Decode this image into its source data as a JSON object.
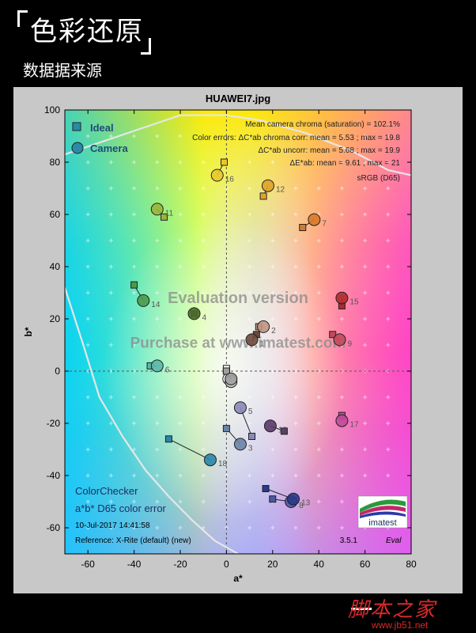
{
  "page": {
    "heading": "色彩还原",
    "subheading": "数据据来源",
    "watermark": "脚本之家",
    "watermark_url": "www.jb51.net"
  },
  "chart_data": {
    "type": "scatter",
    "title": "HUAWEI7.jpg",
    "xlabel": "a*",
    "ylabel": "b*",
    "xlim": [
      -70,
      80
    ],
    "ylim": [
      -70,
      100
    ],
    "xticks": [
      -60,
      -40,
      -20,
      0,
      20,
      40,
      60,
      80
    ],
    "yticks": [
      -60,
      -40,
      -20,
      0,
      20,
      40,
      60,
      80,
      100
    ],
    "grid": true,
    "legend": [
      {
        "label": "Ideal",
        "marker": "square",
        "color": "#2a8aa8"
      },
      {
        "label": "Camera",
        "marker": "circle",
        "color": "#2a8aa8"
      }
    ],
    "stats": [
      "Mean camera chroma (saturation) = 102.1%",
      "Color errors: ΔC*ab chroma corr:  mean = 5.53 ;  max = 19.8",
      "ΔC*ab uncorr:  mean = 5.68 ;  max = 19.9",
      "ΔE*ab:  mean = 9.61 ;  max = 21",
      "sRGB (D65)"
    ],
    "watermarks": [
      "Evaluation version",
      "Purchase at www.imatest.com"
    ],
    "footer": [
      "ColorChecker",
      "a*b* D65 color error",
      "10-Jul-2017 14:41:58",
      "Reference: X-Rite (default) (new)"
    ],
    "logo_text": "imatest",
    "version": "3.5.1",
    "version_tag": "Eval",
    "patches": [
      {
        "label": "1",
        "color": "#6e4a3c",
        "ideal": [
          13,
          14
        ],
        "camera": [
          11,
          12
        ]
      },
      {
        "label": "2",
        "color": "#c09484",
        "ideal": [
          14,
          17
        ],
        "camera": [
          16,
          17
        ]
      },
      {
        "label": "3",
        "color": "#6a84a8",
        "ideal": [
          0,
          -22
        ],
        "camera": [
          6,
          -28
        ]
      },
      {
        "label": "4",
        "color": "#4e6a2e",
        "ideal": [
          -14,
          22
        ],
        "camera": [
          -14,
          22
        ]
      },
      {
        "label": "5",
        "color": "#8a88b8",
        "ideal": [
          11,
          -25
        ],
        "camera": [
          6,
          -14
        ]
      },
      {
        "label": "6",
        "color": "#5ab8a8",
        "ideal": [
          -33,
          2
        ],
        "camera": [
          -30,
          2
        ]
      },
      {
        "label": "7",
        "color": "#d87a2a",
        "ideal": [
          33,
          55
        ],
        "camera": [
          38,
          58
        ]
      },
      {
        "label": "8",
        "color": "#4a56a8",
        "ideal": [
          20,
          -49
        ],
        "camera": [
          28,
          -50
        ]
      },
      {
        "label": "9",
        "color": "#c24a5a",
        "ideal": [
          46,
          14
        ],
        "camera": [
          49,
          12
        ]
      },
      {
        "label": "10",
        "color": "#5a3a6a",
        "ideal": [
          25,
          -23
        ],
        "camera": [
          19,
          -21
        ]
      },
      {
        "label": "11",
        "color": "#9ab43a",
        "ideal": [
          -27,
          59
        ],
        "camera": [
          -30,
          62
        ]
      },
      {
        "label": "12",
        "color": "#e0a22a",
        "ideal": [
          16,
          67
        ],
        "camera": [
          18,
          71
        ]
      },
      {
        "label": "13",
        "color": "#2a3a8a",
        "ideal": [
          17,
          -45
        ],
        "camera": [
          29,
          -49
        ]
      },
      {
        "label": "14",
        "color": "#4a9a4a",
        "ideal": [
          -40,
          33
        ],
        "camera": [
          -36,
          27
        ]
      },
      {
        "label": "15",
        "color": "#b02a2a",
        "ideal": [
          50,
          25
        ],
        "camera": [
          50,
          28
        ]
      },
      {
        "label": "16",
        "color": "#e8c82a",
        "ideal": [
          -1,
          80
        ],
        "camera": [
          -4,
          75
        ]
      },
      {
        "label": "17",
        "color": "#c04a98",
        "ideal": [
          50,
          -17
        ],
        "camera": [
          50,
          -19
        ]
      },
      {
        "label": "18",
        "color": "#2a86a8",
        "ideal": [
          -25,
          -26
        ],
        "camera": [
          -7,
          -34
        ]
      },
      {
        "label": "",
        "color": "#f4f4f4",
        "ideal": [
          0,
          1
        ],
        "camera": [
          1,
          -3
        ]
      },
      {
        "label": "",
        "color": "#c8c8c8",
        "ideal": [
          0,
          0
        ],
        "camera": [
          2,
          -4
        ]
      },
      {
        "label": "",
        "color": "#a0a0a0",
        "ideal": [
          0,
          0
        ],
        "camera": [
          2,
          -3
        ]
      }
    ]
  }
}
